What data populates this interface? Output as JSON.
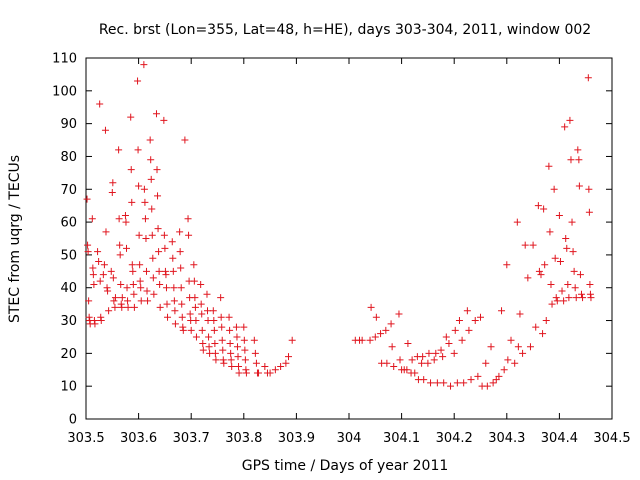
{
  "chart_data": {
    "type": "scatter",
    "title": "Rec. brst (Lon=355, Lat=48, h=HE), days 303-304, 2011, window 002",
    "xlabel": "GPS time / Days of year 2011",
    "ylabel": "STEC from uqrg / TECUs",
    "xlim": [
      303.5,
      304.5
    ],
    "ylim": [
      0,
      110
    ],
    "xticks": [
      "303.5",
      "303.6",
      "303.7",
      "303.8",
      "303.9",
      "304",
      "304.1",
      "304.2",
      "304.3",
      "304.4",
      "304.5"
    ],
    "yticks": [
      "0",
      "10",
      "20",
      "30",
      "40",
      "50",
      "60",
      "70",
      "80",
      "90",
      "100",
      "110"
    ],
    "grid": false,
    "legend": "none",
    "marker": "+",
    "color": "#e0161f",
    "series": [
      {
        "points": [
          [
            303.502,
            67
          ],
          [
            303.503,
            53
          ],
          [
            303.504,
            51
          ],
          [
            303.505,
            36
          ],
          [
            303.506,
            31
          ],
          [
            303.507,
            30
          ],
          [
            303.508,
            29
          ],
          [
            303.512,
            61
          ],
          [
            303.513,
            46
          ],
          [
            303.514,
            44
          ],
          [
            303.515,
            41
          ],
          [
            303.516,
            30
          ],
          [
            303.517,
            29
          ],
          [
            303.522,
            51
          ],
          [
            303.524,
            48
          ],
          [
            303.526,
            96
          ],
          [
            303.527,
            42
          ],
          [
            303.528,
            31
          ],
          [
            303.529,
            30
          ],
          [
            303.533,
            44
          ],
          [
            303.535,
            47
          ],
          [
            303.537,
            88
          ],
          [
            303.538,
            57
          ],
          [
            303.54,
            40
          ],
          [
            303.541,
            39
          ],
          [
            303.543,
            33
          ],
          [
            303.548,
            45
          ],
          [
            303.55,
            69
          ],
          [
            303.551,
            72
          ],
          [
            303.552,
            43
          ],
          [
            303.553,
            36
          ],
          [
            303.555,
            34
          ],
          [
            303.556,
            37
          ],
          [
            303.562,
            82
          ],
          [
            303.563,
            61
          ],
          [
            303.564,
            53
          ],
          [
            303.565,
            50
          ],
          [
            303.566,
            41
          ],
          [
            303.567,
            35
          ],
          [
            303.568,
            34
          ],
          [
            303.569,
            37
          ],
          [
            303.575,
            62
          ],
          [
            303.576,
            60
          ],
          [
            303.577,
            52
          ],
          [
            303.578,
            40
          ],
          [
            303.579,
            36
          ],
          [
            303.58,
            34
          ],
          [
            303.585,
            92
          ],
          [
            303.586,
            76
          ],
          [
            303.587,
            66
          ],
          [
            303.588,
            47
          ],
          [
            303.589,
            45
          ],
          [
            303.59,
            41
          ],
          [
            303.591,
            38
          ],
          [
            303.592,
            34
          ],
          [
            303.598,
            103
          ],
          [
            303.599,
            82
          ],
          [
            303.6,
            71
          ],
          [
            303.601,
            56
          ],
          [
            303.602,
            47
          ],
          [
            303.603,
            42
          ],
          [
            303.604,
            40
          ],
          [
            303.605,
            36
          ],
          [
            303.61,
            108
          ],
          [
            303.611,
            70
          ],
          [
            303.612,
            66
          ],
          [
            303.613,
            61
          ],
          [
            303.614,
            55
          ],
          [
            303.615,
            45
          ],
          [
            303.616,
            39
          ],
          [
            303.617,
            36
          ],
          [
            303.622,
            85
          ],
          [
            303.623,
            79
          ],
          [
            303.624,
            73
          ],
          [
            303.625,
            64
          ],
          [
            303.626,
            56
          ],
          [
            303.627,
            49
          ],
          [
            303.628,
            43
          ],
          [
            303.629,
            38
          ],
          [
            303.634,
            93
          ],
          [
            303.635,
            76
          ],
          [
            303.636,
            68
          ],
          [
            303.637,
            58
          ],
          [
            303.638,
            51
          ],
          [
            303.639,
            45
          ],
          [
            303.64,
            41
          ],
          [
            303.641,
            34
          ],
          [
            303.648,
            91
          ],
          [
            303.649,
            56
          ],
          [
            303.65,
            52
          ],
          [
            303.651,
            45
          ],
          [
            303.652,
            44
          ],
          [
            303.653,
            40
          ],
          [
            303.654,
            35
          ],
          [
            303.655,
            31
          ],
          [
            303.664,
            54
          ],
          [
            303.665,
            49
          ],
          [
            303.666,
            45
          ],
          [
            303.667,
            40
          ],
          [
            303.668,
            36
          ],
          [
            303.669,
            33
          ],
          [
            303.67,
            29
          ],
          [
            303.678,
            57
          ],
          [
            303.679,
            51
          ],
          [
            303.68,
            46
          ],
          [
            303.681,
            40
          ],
          [
            303.682,
            35
          ],
          [
            303.683,
            31
          ],
          [
            303.684,
            28
          ],
          [
            303.685,
            27
          ],
          [
            303.688,
            85
          ],
          [
            303.694,
            61
          ],
          [
            303.695,
            56
          ],
          [
            303.696,
            42
          ],
          [
            303.697,
            37
          ],
          [
            303.698,
            32
          ],
          [
            303.699,
            30
          ],
          [
            303.7,
            27
          ],
          [
            303.705,
            47
          ],
          [
            303.706,
            42
          ],
          [
            303.707,
            37
          ],
          [
            303.708,
            34
          ],
          [
            303.709,
            30
          ],
          [
            303.71,
            25
          ],
          [
            303.718,
            41
          ],
          [
            303.719,
            35
          ],
          [
            303.72,
            32
          ],
          [
            303.721,
            27
          ],
          [
            303.722,
            23
          ],
          [
            303.723,
            21
          ],
          [
            303.73,
            38
          ],
          [
            303.731,
            33
          ],
          [
            303.732,
            30
          ],
          [
            303.733,
            25
          ],
          [
            303.734,
            22
          ],
          [
            303.735,
            20
          ],
          [
            303.742,
            33
          ],
          [
            303.743,
            30
          ],
          [
            303.744,
            27
          ],
          [
            303.745,
            23
          ],
          [
            303.746,
            20
          ],
          [
            303.747,
            18
          ],
          [
            303.756,
            37
          ],
          [
            303.757,
            31
          ],
          [
            303.758,
            28
          ],
          [
            303.759,
            24
          ],
          [
            303.76,
            21
          ],
          [
            303.761,
            18
          ],
          [
            303.762,
            17
          ],
          [
            303.772,
            31
          ],
          [
            303.773,
            27
          ],
          [
            303.774,
            23
          ],
          [
            303.775,
            20
          ],
          [
            303.776,
            18
          ],
          [
            303.777,
            16
          ],
          [
            303.786,
            28
          ],
          [
            303.787,
            25
          ],
          [
            303.788,
            22
          ],
          [
            303.789,
            19
          ],
          [
            303.79,
            16
          ],
          [
            303.791,
            14
          ],
          [
            303.8,
            28
          ],
          [
            303.801,
            24
          ],
          [
            303.802,
            21
          ],
          [
            303.803,
            18
          ],
          [
            303.804,
            15
          ],
          [
            303.805,
            14
          ],
          [
            303.82,
            24
          ],
          [
            303.822,
            20
          ],
          [
            303.824,
            17
          ],
          [
            303.826,
            14
          ],
          [
            303.828,
            14
          ],
          [
            303.84,
            16
          ],
          [
            303.845,
            14
          ],
          [
            303.85,
            14
          ],
          [
            303.86,
            15
          ],
          [
            303.87,
            16
          ],
          [
            303.88,
            17
          ],
          [
            303.885,
            19
          ],
          [
            303.892,
            24
          ],
          [
            304.012,
            24
          ],
          [
            304.02,
            24
          ],
          [
            304.025,
            24
          ],
          [
            304.04,
            24
          ],
          [
            304.042,
            34
          ],
          [
            304.05,
            25
          ],
          [
            304.052,
            31
          ],
          [
            304.06,
            26
          ],
          [
            304.062,
            17
          ],
          [
            304.07,
            27
          ],
          [
            304.072,
            17
          ],
          [
            304.08,
            29
          ],
          [
            304.082,
            22
          ],
          [
            304.085,
            16
          ],
          [
            304.095,
            32
          ],
          [
            304.097,
            18
          ],
          [
            304.1,
            15
          ],
          [
            304.105,
            15
          ],
          [
            304.11,
            15
          ],
          [
            304.112,
            23
          ],
          [
            304.118,
            14
          ],
          [
            304.12,
            18
          ],
          [
            304.125,
            14
          ],
          [
            304.13,
            19
          ],
          [
            304.132,
            12
          ],
          [
            304.138,
            17
          ],
          [
            304.14,
            19
          ],
          [
            304.142,
            12
          ],
          [
            304.15,
            17
          ],
          [
            304.152,
            20
          ],
          [
            304.155,
            11
          ],
          [
            304.162,
            18
          ],
          [
            304.165,
            20
          ],
          [
            304.168,
            11
          ],
          [
            304.175,
            21
          ],
          [
            304.178,
            19
          ],
          [
            304.18,
            11
          ],
          [
            304.185,
            25
          ],
          [
            304.19,
            23
          ],
          [
            304.193,
            10
          ],
          [
            304.2,
            20
          ],
          [
            304.202,
            27
          ],
          [
            304.206,
            11
          ],
          [
            304.21,
            30
          ],
          [
            304.215,
            24
          ],
          [
            304.218,
            11
          ],
          [
            304.225,
            33
          ],
          [
            304.228,
            27
          ],
          [
            304.232,
            12
          ],
          [
            304.24,
            30
          ],
          [
            304.245,
            13
          ],
          [
            304.25,
            31
          ],
          [
            304.253,
            10
          ],
          [
            304.26,
            17
          ],
          [
            304.263,
            10
          ],
          [
            304.27,
            22
          ],
          [
            304.274,
            11
          ],
          [
            304.28,
            12
          ],
          [
            304.285,
            13
          ],
          [
            304.29,
            33
          ],
          [
            304.295,
            15
          ],
          [
            304.3,
            47
          ],
          [
            304.302,
            18
          ],
          [
            304.308,
            24
          ],
          [
            304.315,
            17
          ],
          [
            304.32,
            60
          ],
          [
            304.322,
            22
          ],
          [
            304.325,
            32
          ],
          [
            304.33,
            20
          ],
          [
            304.335,
            53
          ],
          [
            304.34,
            43
          ],
          [
            304.345,
            22
          ],
          [
            304.35,
            53
          ],
          [
            304.355,
            28
          ],
          [
            304.36,
            65
          ],
          [
            304.362,
            45
          ],
          [
            304.365,
            44
          ],
          [
            304.368,
            26
          ],
          [
            304.37,
            64
          ],
          [
            304.372,
            47
          ],
          [
            304.375,
            30
          ],
          [
            304.38,
            77
          ],
          [
            304.382,
            57
          ],
          [
            304.384,
            41
          ],
          [
            304.386,
            35
          ],
          [
            304.39,
            70
          ],
          [
            304.392,
            49
          ],
          [
            304.394,
            37
          ],
          [
            304.396,
            36
          ],
          [
            304.4,
            62
          ],
          [
            304.402,
            48
          ],
          [
            304.405,
            39
          ],
          [
            304.408,
            36
          ],
          [
            304.41,
            89
          ],
          [
            304.412,
            55
          ],
          [
            304.414,
            52
          ],
          [
            304.416,
            41
          ],
          [
            304.418,
            37
          ],
          [
            304.42,
            91
          ],
          [
            304.422,
            79
          ],
          [
            304.424,
            60
          ],
          [
            304.426,
            51
          ],
          [
            304.428,
            45
          ],
          [
            304.43,
            40
          ],
          [
            304.432,
            37
          ],
          [
            304.435,
            82
          ],
          [
            304.437,
            79
          ],
          [
            304.438,
            71
          ],
          [
            304.44,
            44
          ],
          [
            304.442,
            38
          ],
          [
            304.444,
            37
          ],
          [
            304.455,
            104
          ],
          [
            304.456,
            70
          ],
          [
            304.457,
            63
          ],
          [
            304.458,
            41
          ],
          [
            304.459,
            38
          ],
          [
            304.46,
            37
          ]
        ]
      }
    ]
  }
}
